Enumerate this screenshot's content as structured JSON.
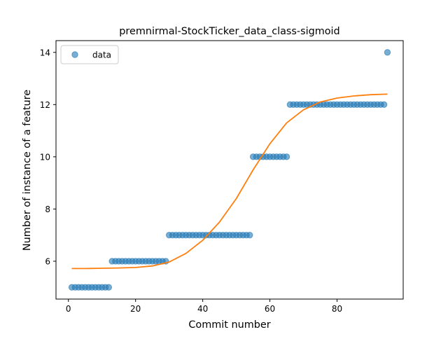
{
  "chart_data": {
    "type": "scatter",
    "title": "premnirmal-StockTicker_data_class-sigmoid",
    "xlabel": "Commit number",
    "ylabel": "Number of instance of a feature",
    "xlim": [
      -3.7,
      99.7
    ],
    "ylim": [
      4.55,
      14.45
    ],
    "xticks": [
      0,
      20,
      40,
      60,
      80
    ],
    "yticks": [
      6,
      8,
      10,
      12,
      14
    ],
    "xtick_labels": [
      "0",
      "20",
      "40",
      "60",
      "80"
    ],
    "ytick_labels": [
      "6",
      "8",
      "10",
      "12",
      "14"
    ],
    "grid": false,
    "legend": {
      "position": "top-left",
      "entries": [
        {
          "label": "data",
          "color": "#1f77b4",
          "marker": "circle"
        }
      ]
    },
    "series": [
      {
        "name": "data",
        "kind": "scatter",
        "color": "#1f77b4",
        "opacity": 0.6,
        "points": [
          [
            1,
            5
          ],
          [
            2,
            5
          ],
          [
            3,
            5
          ],
          [
            4,
            5
          ],
          [
            5,
            5
          ],
          [
            6,
            5
          ],
          [
            7,
            5
          ],
          [
            8,
            5
          ],
          [
            9,
            5
          ],
          [
            10,
            5
          ],
          [
            11,
            5
          ],
          [
            12,
            5
          ],
          [
            13,
            6
          ],
          [
            14,
            6
          ],
          [
            15,
            6
          ],
          [
            16,
            6
          ],
          [
            17,
            6
          ],
          [
            18,
            6
          ],
          [
            19,
            6
          ],
          [
            20,
            6
          ],
          [
            21,
            6
          ],
          [
            22,
            6
          ],
          [
            23,
            6
          ],
          [
            24,
            6
          ],
          [
            25,
            6
          ],
          [
            26,
            6
          ],
          [
            27,
            6
          ],
          [
            28,
            6
          ],
          [
            29,
            6
          ],
          [
            30,
            7
          ],
          [
            31,
            7
          ],
          [
            32,
            7
          ],
          [
            33,
            7
          ],
          [
            34,
            7
          ],
          [
            35,
            7
          ],
          [
            36,
            7
          ],
          [
            37,
            7
          ],
          [
            38,
            7
          ],
          [
            39,
            7
          ],
          [
            40,
            7
          ],
          [
            41,
            7
          ],
          [
            42,
            7
          ],
          [
            43,
            7
          ],
          [
            44,
            7
          ],
          [
            45,
            7
          ],
          [
            46,
            7
          ],
          [
            47,
            7
          ],
          [
            48,
            7
          ],
          [
            49,
            7
          ],
          [
            50,
            7
          ],
          [
            51,
            7
          ],
          [
            52,
            7
          ],
          [
            53,
            7
          ],
          [
            54,
            7
          ],
          [
            55,
            10
          ],
          [
            56,
            10
          ],
          [
            57,
            10
          ],
          [
            58,
            10
          ],
          [
            59,
            10
          ],
          [
            60,
            10
          ],
          [
            61,
            10
          ],
          [
            62,
            10
          ],
          [
            63,
            10
          ],
          [
            64,
            10
          ],
          [
            65,
            10
          ],
          [
            66,
            12
          ],
          [
            67,
            12
          ],
          [
            68,
            12
          ],
          [
            69,
            12
          ],
          [
            70,
            12
          ],
          [
            71,
            12
          ],
          [
            72,
            12
          ],
          [
            73,
            12
          ],
          [
            74,
            12
          ],
          [
            75,
            12
          ],
          [
            76,
            12
          ],
          [
            77,
            12
          ],
          [
            78,
            12
          ],
          [
            79,
            12
          ],
          [
            80,
            12
          ],
          [
            81,
            12
          ],
          [
            82,
            12
          ],
          [
            83,
            12
          ],
          [
            84,
            12
          ],
          [
            85,
            12
          ],
          [
            86,
            12
          ],
          [
            87,
            12
          ],
          [
            88,
            12
          ],
          [
            89,
            12
          ],
          [
            90,
            12
          ],
          [
            91,
            12
          ],
          [
            92,
            12
          ],
          [
            93,
            12
          ],
          [
            94,
            12
          ],
          [
            95,
            14
          ]
        ]
      },
      {
        "name": "",
        "kind": "line",
        "color": "#ff7f0e",
        "points": [
          [
            1,
            5.72
          ],
          [
            5,
            5.72
          ],
          [
            10,
            5.73
          ],
          [
            15,
            5.74
          ],
          [
            20,
            5.76
          ],
          [
            25,
            5.82
          ],
          [
            30,
            5.97
          ],
          [
            35,
            6.3
          ],
          [
            40,
            6.8
          ],
          [
            45,
            7.5
          ],
          [
            50,
            8.4
          ],
          [
            55,
            9.5
          ],
          [
            60,
            10.5
          ],
          [
            65,
            11.3
          ],
          [
            70,
            11.8
          ],
          [
            75,
            12.1
          ],
          [
            80,
            12.25
          ],
          [
            85,
            12.33
          ],
          [
            90,
            12.38
          ],
          [
            95,
            12.4
          ]
        ]
      }
    ]
  }
}
